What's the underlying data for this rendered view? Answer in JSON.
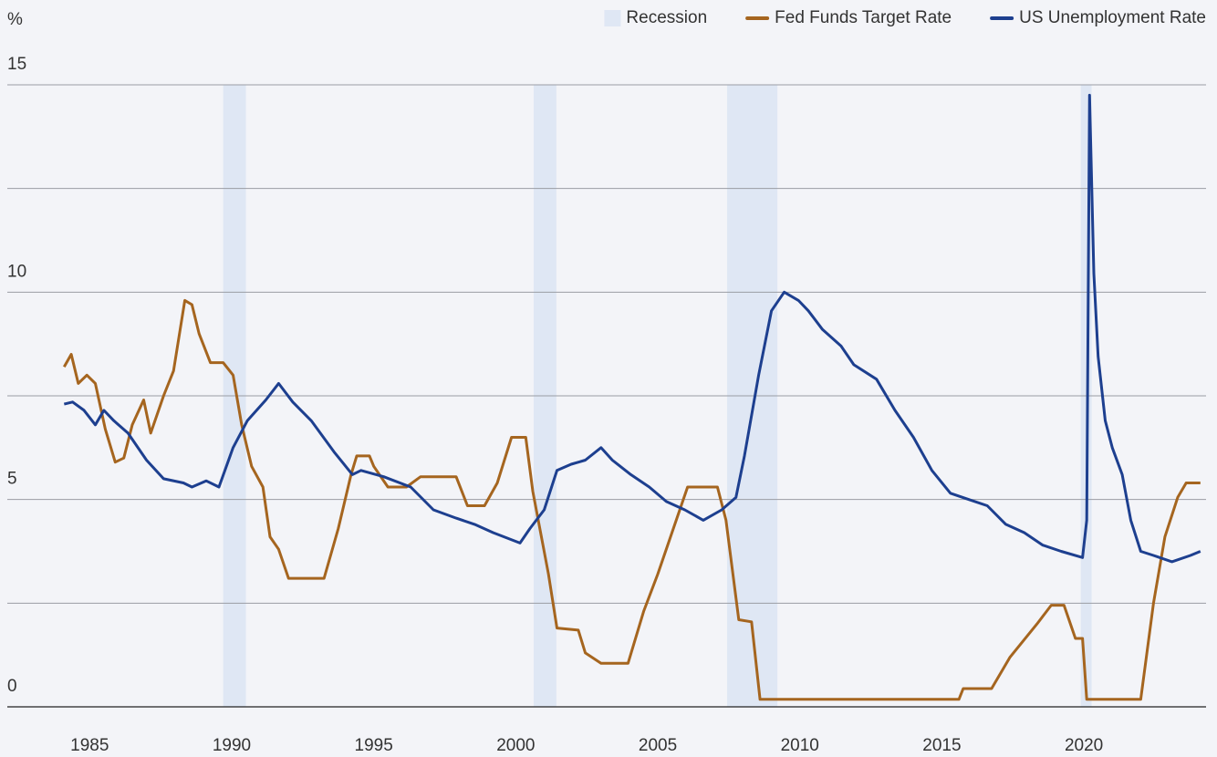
{
  "chart_data": {
    "type": "line",
    "y_label": "%",
    "xlim": [
      1982.1,
      2024.3
    ],
    "xticks": [
      1985,
      1990,
      1995,
      2000,
      2005,
      2010,
      2015,
      2020
    ],
    "ylim": [
      0,
      15
    ],
    "yticks": [
      0,
      5,
      10,
      15
    ],
    "minor_yticks": [
      2.5,
      7.5,
      12.5
    ],
    "grid": true,
    "legend": "top-right",
    "recession_name": "Recession",
    "recession_color": "#dfe7f4",
    "recessions": [
      [
        1989.7,
        1990.5
      ],
      [
        2000.63,
        2001.43
      ],
      [
        2007.44,
        2009.21
      ],
      [
        2019.89,
        2020.27
      ]
    ],
    "series": [
      {
        "name": "Fed Funds Target Rate",
        "color": "#a5651f",
        "x": [
          1984.1,
          1984.35,
          1984.6,
          1984.9,
          1985.2,
          1985.55,
          1985.9,
          1986.2,
          1986.5,
          1986.9,
          1987.15,
          1987.6,
          1987.95,
          1988.35,
          1988.6,
          1988.85,
          1989.25,
          1989.7,
          1990.05,
          1990.35,
          1990.7,
          1991.1,
          1991.35,
          1991.65,
          1992.0,
          1993.25,
          1993.75,
          1994.2,
          1994.4,
          1994.85,
          1995.0,
          1995.5,
          1996.15,
          1996.65,
          1997.9,
          1998.3,
          1998.9,
          1999.35,
          1999.85,
          2000.35,
          2000.6,
          2001.15,
          2001.45,
          2002.2,
          2002.45,
          2003.0,
          2003.95,
          2004.5,
          2005.0,
          2005.6,
          2006.05,
          2007.1,
          2007.4,
          2007.85,
          2008.3,
          2008.6,
          2015.6,
          2015.75,
          2016.75,
          2017.4,
          2018.35,
          2018.85,
          2019.3,
          2019.7,
          2019.95,
          2020.1,
          2022.0,
          2022.45,
          2022.85,
          2023.3,
          2023.6,
          2024.1
        ],
        "values": [
          8.2,
          8.5,
          7.8,
          8.0,
          7.8,
          6.7,
          5.9,
          6.0,
          6.8,
          7.4,
          6.6,
          7.5,
          8.1,
          9.8,
          9.7,
          9.0,
          8.3,
          8.3,
          8.0,
          6.8,
          5.8,
          5.3,
          4.1,
          3.8,
          3.1,
          3.1,
          4.3,
          5.6,
          6.05,
          6.05,
          5.8,
          5.3,
          5.3,
          5.55,
          5.55,
          4.85,
          4.85,
          5.4,
          6.5,
          6.5,
          5.2,
          3.2,
          1.9,
          1.85,
          1.3,
          1.05,
          1.05,
          2.3,
          3.2,
          4.4,
          5.3,
          5.3,
          4.5,
          2.1,
          2.05,
          0.18,
          0.18,
          0.44,
          0.44,
          1.2,
          2.0,
          2.45,
          2.45,
          1.65,
          1.65,
          0.18,
          0.18,
          2.5,
          4.1,
          5.05,
          5.4,
          5.4
        ]
      },
      {
        "name": "US Unemployment Rate",
        "color": "#1d3f8f",
        "x": [
          1984.1,
          1984.4,
          1984.8,
          1985.2,
          1985.5,
          1985.85,
          1986.35,
          1987.0,
          1987.6,
          1988.3,
          1988.6,
          1989.1,
          1989.55,
          1990.05,
          1990.55,
          1991.2,
          1991.65,
          1992.15,
          1992.8,
          1993.6,
          1994.25,
          1994.55,
          1995.35,
          1996.3,
          1997.1,
          1997.9,
          1998.55,
          1999.2,
          2000.15,
          2000.5,
          2001.0,
          2001.45,
          2001.95,
          2002.45,
          2003.0,
          2003.4,
          2004.05,
          2004.7,
          2005.3,
          2005.95,
          2006.6,
          2007.25,
          2007.75,
          2008.05,
          2008.55,
          2009.0,
          2009.45,
          2009.95,
          2010.3,
          2010.8,
          2011.45,
          2011.9,
          2012.7,
          2013.35,
          2014.0,
          2014.65,
          2015.3,
          2015.95,
          2016.6,
          2017.25,
          2017.9,
          2018.55,
          2019.2,
          2019.95,
          2020.1,
          2020.2,
          2020.35,
          2020.5,
          2020.75,
          2021.0,
          2021.35,
          2021.65,
          2022.0,
          2022.45,
          2023.1,
          2023.75,
          2024.1
        ],
        "values": [
          7.3,
          7.35,
          7.15,
          6.8,
          7.15,
          6.9,
          6.6,
          5.95,
          5.5,
          5.4,
          5.3,
          5.45,
          5.3,
          6.25,
          6.9,
          7.4,
          7.8,
          7.35,
          6.9,
          6.15,
          5.6,
          5.7,
          5.55,
          5.3,
          4.75,
          4.55,
          4.4,
          4.2,
          3.95,
          4.3,
          4.75,
          5.7,
          5.85,
          5.95,
          6.25,
          5.95,
          5.6,
          5.3,
          4.95,
          4.75,
          4.5,
          4.75,
          5.05,
          6.05,
          8.0,
          9.55,
          10.0,
          9.8,
          9.55,
          9.1,
          8.7,
          8.25,
          7.9,
          7.15,
          6.5,
          5.7,
          5.15,
          5.0,
          4.85,
          4.4,
          4.2,
          3.9,
          3.75,
          3.6,
          4.5,
          14.75,
          10.45,
          8.45,
          6.9,
          6.25,
          5.6,
          4.5,
          3.75,
          3.65,
          3.5,
          3.65,
          3.75
        ]
      }
    ]
  }
}
